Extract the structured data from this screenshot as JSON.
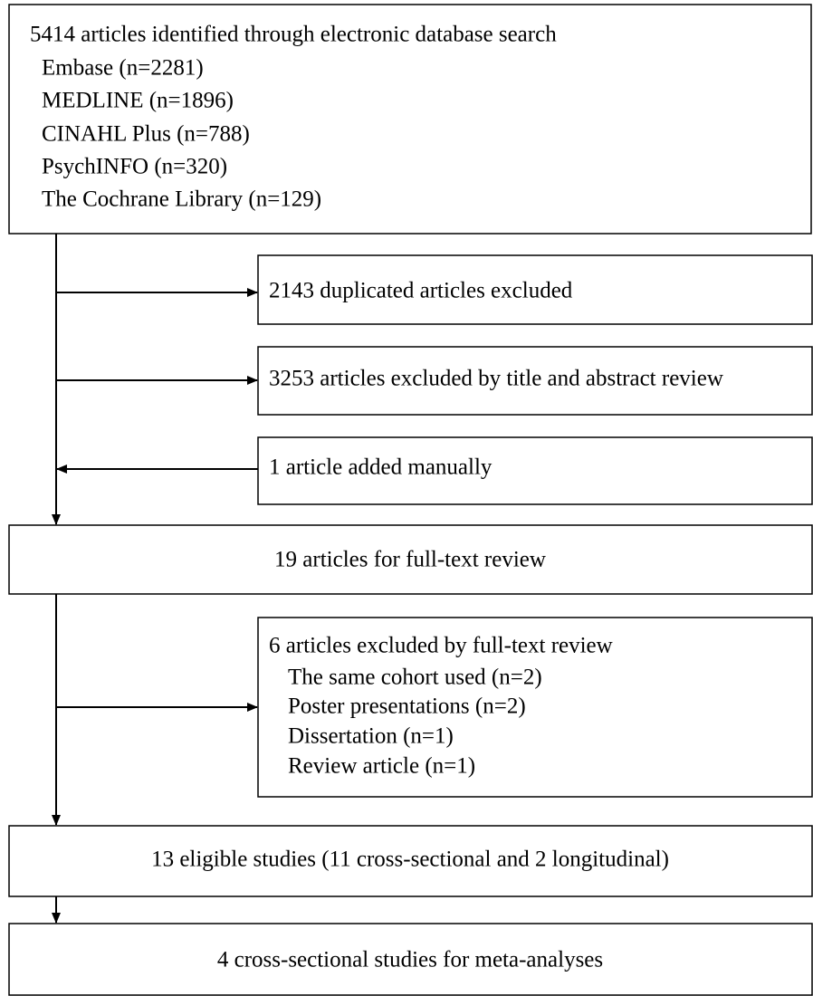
{
  "nodes": [
    {
      "lines": [
        "5414 articles identified through electronic database search",
        "Embase (n=2281)",
        "MEDLINE (n=1896)",
        "CINAHL Plus (n=788)",
        "PsychINFO (n=320)",
        "The Cochrane Library (n=129)"
      ]
    },
    {
      "lines": [
        "2143 duplicated articles excluded"
      ]
    },
    {
      "lines": [
        "3253 articles excluded by title and abstract review"
      ]
    },
    {
      "lines": [
        "1 article added manually"
      ]
    },
    {
      "lines": [
        "19 articles for full-text review"
      ]
    },
    {
      "lines": [
        "6 articles excluded by full-text review",
        "The same cohort used (n=2)",
        "Poster presentations (n=2)",
        "Dissertation (n=1)",
        "Review article (n=1)"
      ]
    },
    {
      "lines": [
        "13 eligible studies (11 cross-sectional and 2 longitudinal)"
      ]
    },
    {
      "lines": [
        "4 cross-sectional studies for meta-analyses"
      ]
    }
  ]
}
